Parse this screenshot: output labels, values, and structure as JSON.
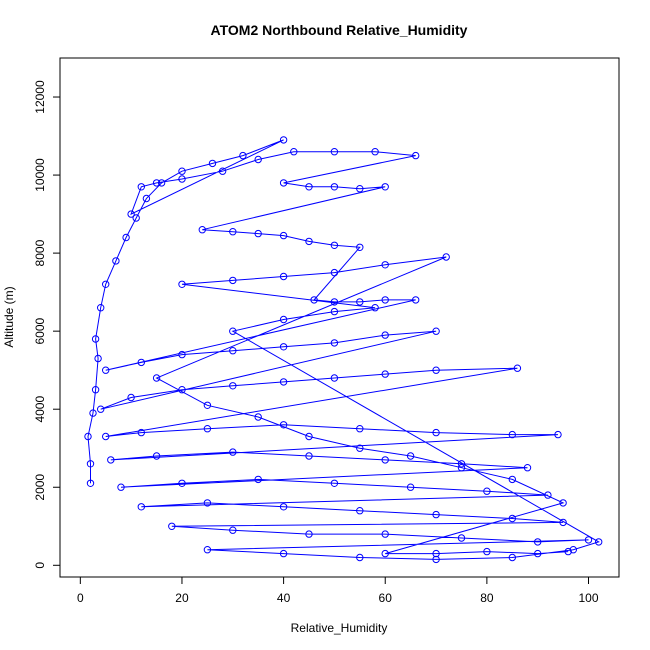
{
  "chart_data": {
    "type": "scatter",
    "title": "ATOM2 Northbound Relative_Humidity",
    "xlabel": "Relative_Humidity",
    "ylabel": "Altitude (m)",
    "xlim": [
      -4,
      106
    ],
    "ylim": [
      -300,
      13000
    ],
    "xticks": [
      0,
      20,
      40,
      60,
      80,
      100
    ],
    "yticks": [
      0,
      2000,
      4000,
      6000,
      8000,
      10000,
      12000
    ],
    "xtick_labels": [
      "0",
      "20",
      "40",
      "60",
      "80",
      "100"
    ],
    "ytick_labels": [
      "0",
      "2000",
      "4000",
      "6000",
      "8000",
      "10000",
      "12000"
    ],
    "grid": false,
    "point_style": "open-circle-with-connecting-lines",
    "color": "#0000ff",
    "series": [
      {
        "points": [
          [
            2,
            2100
          ],
          [
            2,
            2600
          ],
          [
            1.5,
            3300
          ],
          [
            2.5,
            3900
          ],
          [
            3,
            4500
          ],
          [
            3.5,
            5300
          ],
          [
            3,
            5800
          ],
          [
            4,
            6600
          ],
          [
            5,
            7200
          ],
          [
            7,
            7800
          ],
          [
            9,
            8400
          ],
          [
            11,
            8900
          ],
          [
            13,
            9400
          ],
          [
            16,
            9800
          ],
          [
            20,
            10100
          ],
          [
            26,
            10300
          ],
          [
            32,
            10500
          ],
          [
            40,
            10900
          ],
          [
            10,
            9000
          ],
          [
            12,
            9700
          ],
          [
            15,
            9800
          ],
          [
            20,
            9900
          ],
          [
            28,
            10100
          ],
          [
            35,
            10400
          ],
          [
            42,
            10600
          ],
          [
            50,
            10600
          ],
          [
            58,
            10600
          ],
          [
            66,
            10500
          ],
          [
            40,
            9800
          ],
          [
            45,
            9700
          ],
          [
            50,
            9700
          ],
          [
            55,
            9650
          ],
          [
            60,
            9700
          ],
          [
            24,
            8600
          ],
          [
            30,
            8550
          ],
          [
            35,
            8500
          ],
          [
            40,
            8450
          ],
          [
            45,
            8300
          ],
          [
            50,
            8200
          ],
          [
            55,
            8150
          ],
          [
            46,
            6800
          ],
          [
            50,
            6750
          ],
          [
            55,
            6750
          ],
          [
            60,
            6800
          ],
          [
            66,
            6800
          ],
          [
            5,
            5000
          ],
          [
            12,
            5200
          ],
          [
            20,
            5400
          ],
          [
            30,
            5500
          ],
          [
            40,
            5600
          ],
          [
            50,
            5700
          ],
          [
            60,
            5900
          ],
          [
            70,
            6000
          ],
          [
            4,
            4000
          ],
          [
            10,
            4300
          ],
          [
            20,
            4500
          ],
          [
            30,
            4600
          ],
          [
            40,
            4700
          ],
          [
            50,
            4800
          ],
          [
            60,
            4900
          ],
          [
            70,
            5000
          ],
          [
            86,
            5050
          ],
          [
            5,
            3300
          ],
          [
            12,
            3400
          ],
          [
            25,
            3500
          ],
          [
            40,
            3600
          ],
          [
            55,
            3500
          ],
          [
            70,
            3400
          ],
          [
            85,
            3350
          ],
          [
            94,
            3350
          ],
          [
            6,
            2700
          ],
          [
            15,
            2800
          ],
          [
            30,
            2900
          ],
          [
            45,
            2800
          ],
          [
            60,
            2700
          ],
          [
            75,
            2600
          ],
          [
            88,
            2500
          ],
          [
            8,
            2000
          ],
          [
            20,
            2100
          ],
          [
            35,
            2200
          ],
          [
            50,
            2100
          ],
          [
            65,
            2000
          ],
          [
            80,
            1900
          ],
          [
            92,
            1800
          ],
          [
            12,
            1500
          ],
          [
            25,
            1600
          ],
          [
            40,
            1500
          ],
          [
            55,
            1400
          ],
          [
            70,
            1300
          ],
          [
            85,
            1200
          ],
          [
            95,
            1100
          ],
          [
            18,
            1000
          ],
          [
            30,
            900
          ],
          [
            45,
            800
          ],
          [
            60,
            800
          ],
          [
            75,
            700
          ],
          [
            90,
            600
          ],
          [
            100,
            650
          ],
          [
            25,
            400
          ],
          [
            40,
            300
          ],
          [
            55,
            200
          ],
          [
            70,
            150
          ],
          [
            85,
            200
          ],
          [
            97,
            400
          ],
          [
            102,
            600
          ],
          [
            30,
            6000
          ],
          [
            40,
            6300
          ],
          [
            50,
            6500
          ],
          [
            58,
            6600
          ],
          [
            20,
            7200
          ],
          [
            30,
            7300
          ],
          [
            40,
            7400
          ],
          [
            50,
            7500
          ],
          [
            60,
            7700
          ],
          [
            72,
            7900
          ],
          [
            15,
            4800
          ],
          [
            25,
            4100
          ],
          [
            35,
            3800
          ],
          [
            45,
            3300
          ],
          [
            55,
            3000
          ],
          [
            65,
            2800
          ],
          [
            75,
            2500
          ],
          [
            85,
            2200
          ],
          [
            95,
            1600
          ],
          [
            60,
            300
          ],
          [
            70,
            300
          ],
          [
            80,
            350
          ],
          [
            90,
            300
          ],
          [
            96,
            350
          ]
        ]
      }
    ]
  }
}
